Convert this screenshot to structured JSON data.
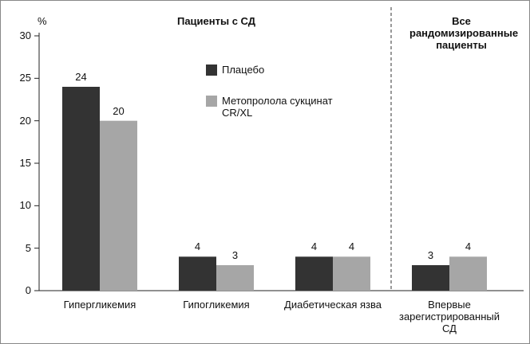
{
  "chart_data": {
    "type": "bar",
    "y_unit": "%",
    "annotations": [
      "Пациенты с СД",
      "Все рандомизированные пациенты"
    ],
    "categories": [
      "Гипергликемия",
      "Гипогликемия",
      "Диабетическая язва",
      "Впервые зарегистрированный СД"
    ],
    "series": [
      {
        "name": "Плацебо",
        "color": "#333333",
        "values": [
          24,
          4,
          4,
          3
        ]
      },
      {
        "name": "Метопролола сукцинат CR/XL",
        "color": "#a6a6a6",
        "values": [
          20,
          3,
          4,
          4
        ]
      }
    ],
    "ylim": [
      0,
      30
    ],
    "yticks": [
      0,
      5,
      10,
      15,
      20,
      25,
      30
    ],
    "grid": false,
    "legend": "top"
  }
}
